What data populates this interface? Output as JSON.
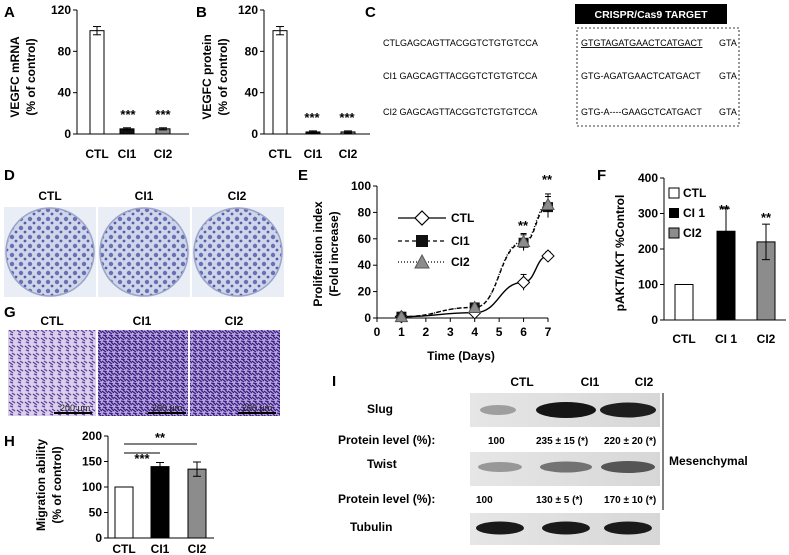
{
  "panels": {
    "A": {
      "letter": "A",
      "ylabel": [
        "VEGFC mRNA",
        "(% of control)"
      ],
      "yticks": [
        "0",
        "40",
        "80",
        "120"
      ],
      "significance": [
        "***",
        "***"
      ]
    },
    "B": {
      "letter": "B",
      "ylabel": [
        "VEGFC protein",
        "(% of control)"
      ],
      "yticks": [
        "0",
        "40",
        "80",
        "120"
      ],
      "significance": [
        "***",
        "***"
      ]
    },
    "C": {
      "letter": "C",
      "box_title": "CRISPR/Cas9 TARGET",
      "rows": [
        {
          "prefix": "CTLGAGCAGTTACGGTCTGTGTCCA",
          "target": "GTGTAGATGAACTCATGACT",
          "suffix": "GTA"
        },
        {
          "prefix": "CI1  GAGCAGTTACGGTCTGTGTCCA",
          "target": "GTG-AGATGAACTCATGACT",
          "suffix": "GTA"
        },
        {
          "prefix": "CI2  GAGCAGTTACGGTCTGTGTCCA",
          "target": "GTG-A----GAAGCTCATGACT",
          "suffix": "GTA"
        }
      ]
    },
    "D": {
      "letter": "D",
      "labels": [
        "CTL",
        "CI1",
        "CI2"
      ]
    },
    "E": {
      "letter": "E",
      "ylabel": [
        "Proliferation index",
        "(Fold increase)"
      ],
      "xlabel": "Time (Days)",
      "yticks": [
        "0",
        "20",
        "40",
        "60",
        "80",
        "100"
      ],
      "xticks": [
        "0",
        "1",
        "2",
        "3",
        "4",
        "5",
        "6",
        "7"
      ],
      "legend": [
        "CTL",
        "CI1",
        "CI2"
      ],
      "significance": [
        "**",
        "**"
      ]
    },
    "F": {
      "letter": "F",
      "ylabel": "pAKT/AKT %Control",
      "yticks": [
        "0",
        "100",
        "200",
        "300",
        "400"
      ],
      "legend": [
        "CTL",
        "CI 1",
        "CI2"
      ],
      "significance": [
        "**",
        "**"
      ]
    },
    "G": {
      "letter": "G",
      "labels": [
        "CTL",
        "CI1",
        "CI2"
      ],
      "scale": "200 µm"
    },
    "H": {
      "letter": "H",
      "ylabel": [
        "Migration ability",
        "(% of control)"
      ],
      "yticks": [
        "0",
        "50",
        "100",
        "150",
        "200"
      ],
      "brackets": [
        "***",
        "**"
      ]
    },
    "I": {
      "letter": "I",
      "lanes": [
        "CTL",
        "CI1",
        "CI2"
      ],
      "rows": [
        "Slug",
        "Twist",
        "Tubulin"
      ],
      "protein_label": "Protein level (%):",
      "slug_levels": [
        "100",
        "235 ± 15 (*)",
        "220 ± 20 (*)"
      ],
      "twist_levels": [
        "100",
        "130 ± 5 (*)",
        "170 ± 10 (*)"
      ],
      "group_label": "Mesenchymal"
    }
  },
  "chart_data": [
    {
      "type": "bar",
      "panel": "A",
      "categories": [
        "CTL",
        "CI1",
        "CI2"
      ],
      "values": [
        100,
        5,
        5
      ],
      "errors": [
        4,
        1,
        1
      ],
      "ylabel": "VEGFC mRNA (% of control)",
      "ylim": [
        0,
        120
      ],
      "colors": [
        "#ffffff",
        "#111111",
        "#8c8c8c"
      ]
    },
    {
      "type": "bar",
      "panel": "B",
      "categories": [
        "CTL",
        "CI1",
        "CI2"
      ],
      "values": [
        100,
        2,
        2
      ],
      "errors": [
        4,
        1,
        1
      ],
      "ylabel": "VEGFC protein (% of control)",
      "ylim": [
        0,
        120
      ],
      "colors": [
        "#ffffff",
        "#111111",
        "#8c8c8c"
      ]
    },
    {
      "type": "line",
      "panel": "E",
      "x": [
        1,
        4,
        6,
        7
      ],
      "series": [
        {
          "name": "CTL",
          "values": [
            1,
            4,
            27,
            47
          ],
          "errors": [
            0,
            1,
            6,
            3
          ]
        },
        {
          "name": "CI1",
          "values": [
            1,
            8,
            57,
            84
          ],
          "errors": [
            0,
            1,
            6,
            8
          ]
        },
        {
          "name": "CI2",
          "values": [
            1,
            8,
            58,
            86
          ],
          "errors": [
            0,
            1,
            6,
            8
          ]
        }
      ],
      "xlabel": "Time (Days)",
      "ylabel": "Proliferation index (Fold increase)",
      "xlim": [
        0,
        7
      ],
      "ylim": [
        0,
        100
      ]
    },
    {
      "type": "bar",
      "panel": "F",
      "categories": [
        "CTL",
        "CI 1",
        "CI2"
      ],
      "values": [
        100,
        250,
        220
      ],
      "errors": [
        0,
        65,
        50
      ],
      "ylabel": "pAKT/AKT %Control",
      "ylim": [
        0,
        400
      ],
      "colors": [
        "#ffffff",
        "#000000",
        "#8c8c8c"
      ]
    },
    {
      "type": "bar",
      "panel": "H",
      "categories": [
        "CTL",
        "CI1",
        "CI2"
      ],
      "values": [
        100,
        140,
        135
      ],
      "errors": [
        0,
        8,
        14
      ],
      "ylabel": "Migration ability (% of control)",
      "ylim": [
        0,
        200
      ],
      "colors": [
        "#ffffff",
        "#000000",
        "#8c8c8c"
      ]
    }
  ]
}
